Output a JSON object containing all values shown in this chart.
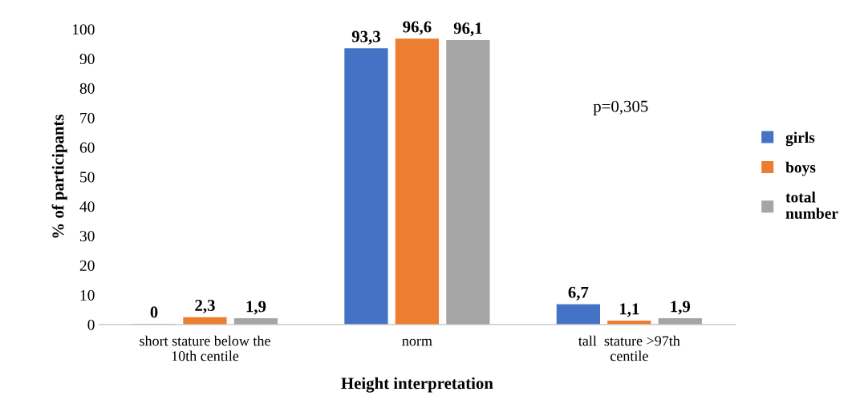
{
  "chart_data": {
    "type": "bar",
    "xlabel": "Height interpretation",
    "ylabel": "% of participants",
    "categories": [
      "short stature below the\n10th centile",
      "norm",
      "tall  stature >97th\ncentile"
    ],
    "series": [
      {
        "name": "girls",
        "color": "#4472c4",
        "values": [
          0,
          93.3,
          6.7
        ],
        "value_labels": [
          "0",
          "93,3",
          "6,7"
        ]
      },
      {
        "name": "boys",
        "color": "#ed7d31",
        "values": [
          2.3,
          96.6,
          1.1
        ],
        "value_labels": [
          "2,3",
          "96,6",
          "1,1"
        ]
      },
      {
        "name": "total\nnumber",
        "color": "#a5a5a5",
        "values": [
          1.9,
          96.1,
          1.9
        ],
        "value_labels": [
          "1,9",
          "96,1",
          "1,9"
        ]
      }
    ],
    "ylim": [
      0,
      100
    ],
    "yticks": [
      0,
      10,
      20,
      30,
      40,
      50,
      60,
      70,
      80,
      90,
      100
    ],
    "annotations": [
      "p=0,305"
    ],
    "legend": "right",
    "grid": false
  }
}
